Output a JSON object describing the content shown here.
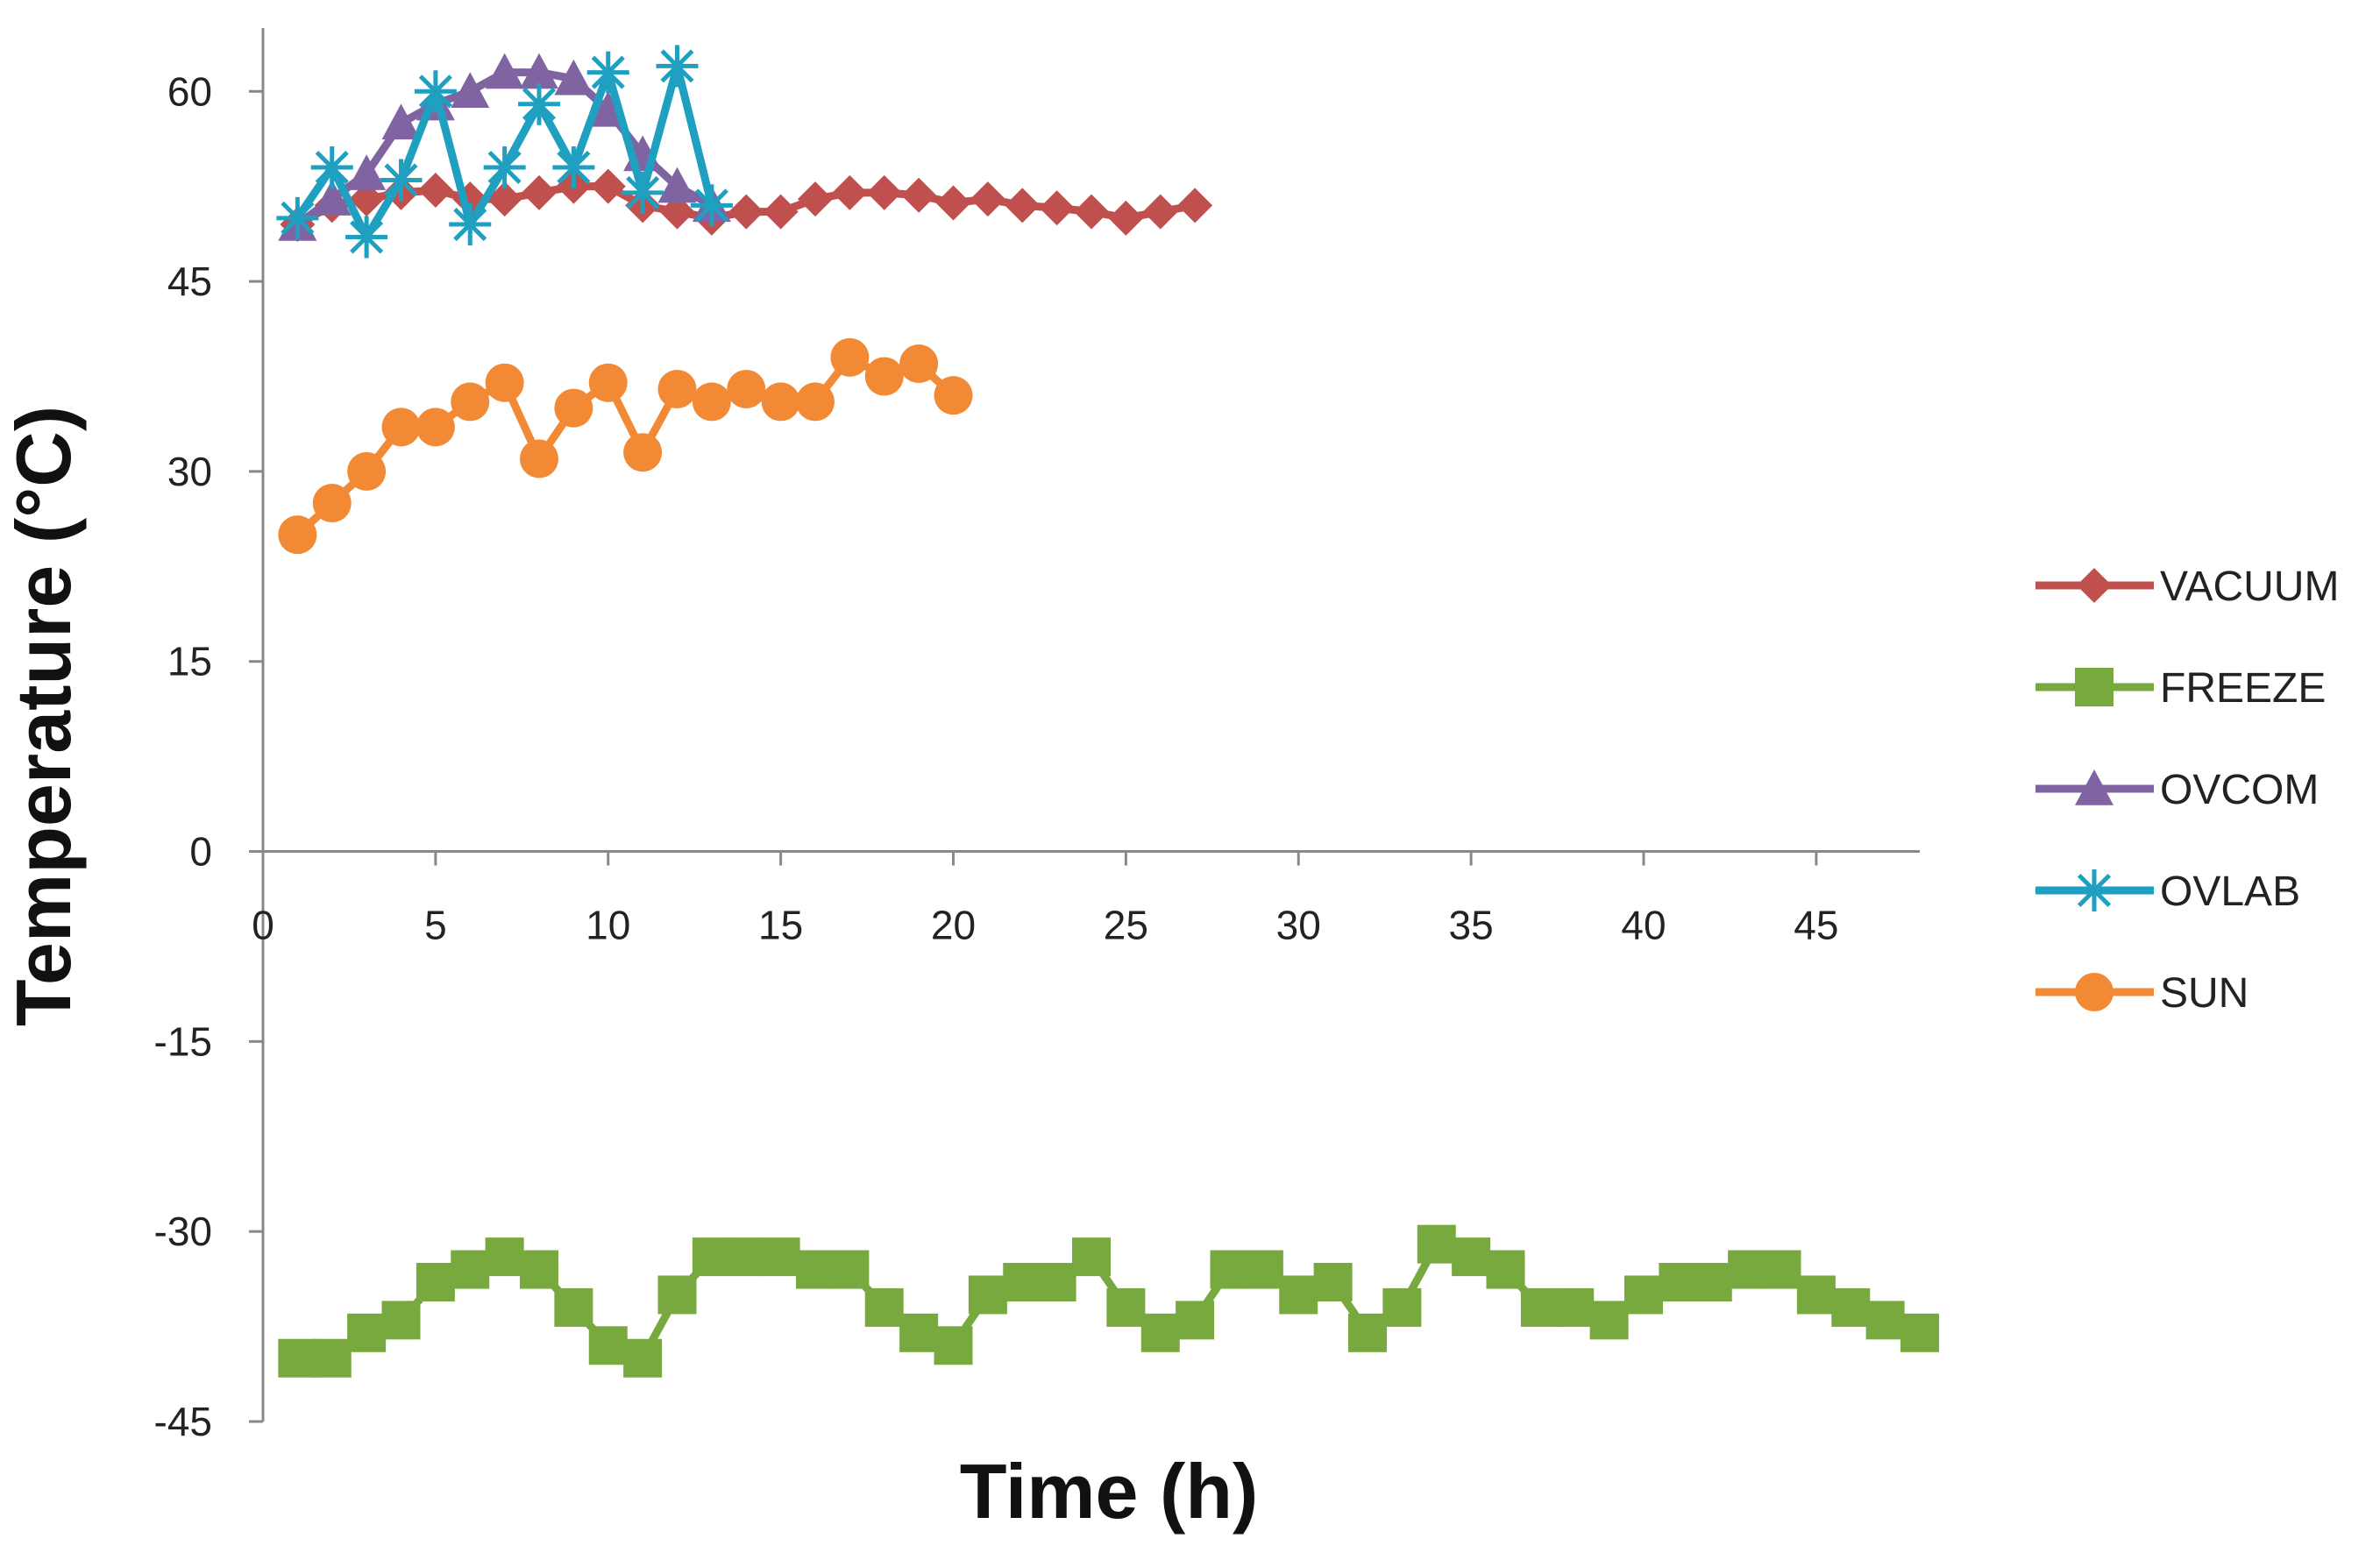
{
  "chart_data": {
    "type": "line",
    "title": "",
    "xlabel": "Time (h)",
    "ylabel": "Temperature (°C)",
    "xlim": [
      0,
      48
    ],
    "ylim": [
      -45,
      65
    ],
    "xticks": [
      0,
      5,
      10,
      15,
      20,
      25,
      30,
      35,
      40,
      45
    ],
    "yticks": [
      -45,
      -30,
      -15,
      0,
      15,
      30,
      45,
      60
    ],
    "grid": false,
    "legend_position": "right",
    "series": [
      {
        "name": "VACUUM",
        "color": "#C0504D",
        "marker": "diamond",
        "x": [
          1,
          2,
          3,
          4,
          5,
          6,
          7,
          8,
          9,
          10,
          11,
          12,
          13,
          14,
          15,
          16,
          17,
          18,
          19,
          20,
          21,
          22,
          23,
          24,
          25,
          26,
          27
        ],
        "values": [
          49.5,
          51,
          51.5,
          52,
          52.2,
          51.5,
          51.5,
          52,
          52.5,
          52.5,
          51,
          50.5,
          50,
          50.5,
          50.5,
          51.5,
          52,
          52,
          51.8,
          51.2,
          51.5,
          51,
          50.8,
          50.5,
          50,
          50.5,
          51
        ]
      },
      {
        "name": "FREEZE",
        "color": "#77A93E",
        "marker": "square",
        "x": [
          1,
          2,
          3,
          4,
          5,
          6,
          7,
          8,
          9,
          10,
          11,
          12,
          13,
          14,
          15,
          16,
          17,
          18,
          19,
          20,
          21,
          22,
          23,
          24,
          25,
          26,
          27,
          28,
          29,
          30,
          31,
          32,
          33,
          34,
          35,
          36,
          37,
          38,
          39,
          40,
          41,
          42,
          43,
          44,
          45,
          46,
          47,
          48
        ],
        "values": [
          -40,
          -40,
          -38,
          -37,
          -34,
          -33,
          -32,
          -33,
          -36,
          -39,
          -40,
          -35,
          -32,
          -32,
          -32,
          -33,
          -33,
          -36,
          -38,
          -39,
          -35,
          -34,
          -34,
          -32,
          -36,
          -38,
          -37,
          -33,
          -33,
          -35,
          -34,
          -38,
          -36,
          -31,
          -32,
          -33,
          -36,
          -36,
          -37,
          -35,
          -34,
          -34,
          -33,
          -33,
          -35,
          -36,
          -37,
          -38
        ]
      },
      {
        "name": "OVCOM",
        "color": "#8064A2",
        "marker": "triangle",
        "x": [
          1,
          2,
          3,
          4,
          5,
          6,
          7,
          8,
          9,
          10,
          11,
          12,
          13
        ],
        "values": [
          49.5,
          51.5,
          53.5,
          57.5,
          59,
          60,
          61.5,
          61.5,
          61,
          58.5,
          55,
          52.5,
          51
        ]
      },
      {
        "name": "OVLAB",
        "color": "#1FA0C0",
        "marker": "star",
        "x": [
          1,
          2,
          3,
          4,
          5,
          6,
          7,
          8,
          9,
          10,
          11,
          12,
          13
        ],
        "values": [
          50,
          54,
          48.5,
          53,
          60,
          49.5,
          54,
          59,
          54,
          61.5,
          52,
          62,
          51
        ]
      },
      {
        "name": "SUN",
        "color": "#F28A35",
        "marker": "circle",
        "x": [
          1,
          2,
          3,
          4,
          5,
          6,
          7,
          8,
          9,
          10,
          11,
          12,
          13,
          14,
          15,
          16,
          17,
          18,
          19,
          20
        ],
        "values": [
          25,
          27.5,
          30,
          33.5,
          33.5,
          35.5,
          37,
          31,
          35,
          37,
          31.5,
          36.5,
          35.5,
          36.5,
          35.5,
          35.5,
          39,
          37.5,
          38.5,
          36
        ]
      }
    ]
  }
}
